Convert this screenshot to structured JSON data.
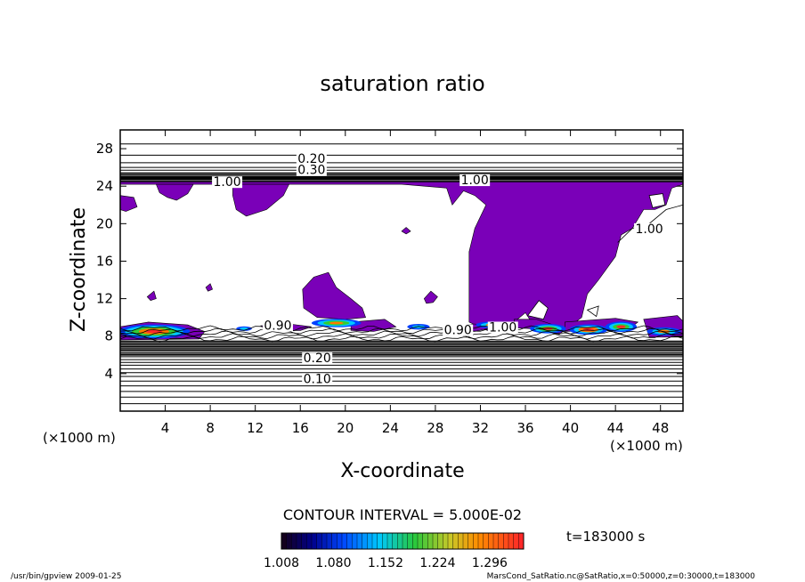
{
  "chart_data": {
    "type": "heatmap",
    "title": "saturation ratio",
    "xlabel": "X-coordinate",
    "ylabel": "Z-coordinate",
    "x_unit": "(×1000 m)",
    "y_unit": "(×1000 m)",
    "xlim": [
      0,
      50
    ],
    "ylim": [
      0,
      30
    ],
    "x_ticks": [
      "4",
      "8",
      "12",
      "16",
      "20",
      "24",
      "28",
      "32",
      "36",
      "40",
      "44",
      "48"
    ],
    "y_ticks": [
      "4",
      "8",
      "12",
      "16",
      "20",
      "24",
      "28"
    ],
    "contour_interval_text": "CONTOUR INTERVAL = 5.000E-02",
    "colorbar_ticks": [
      "1.008",
      "1.080",
      "1.152",
      "1.224",
      "1.296"
    ],
    "colorbar_range": [
      1.008,
      1.296
    ],
    "contour_labels": [
      {
        "text": "0.20",
        "x": 17.0,
        "y": 26.5
      },
      {
        "text": "0.30",
        "x": 17.0,
        "y": 25.3
      },
      {
        "text": "1.00",
        "x": 9.5,
        "y": 24.0
      },
      {
        "text": "1.00",
        "x": 31.5,
        "y": 24.2
      },
      {
        "text": "1.00",
        "x": 47.0,
        "y": 19.0
      },
      {
        "text": "0.90",
        "x": 14.0,
        "y": 8.7
      },
      {
        "text": "0.90",
        "x": 30.0,
        "y": 8.2
      },
      {
        "text": "1.00",
        "x": 34.0,
        "y": 8.5
      },
      {
        "text": "0.20",
        "x": 17.5,
        "y": 5.2
      },
      {
        "text": "0.10",
        "x": 17.5,
        "y": 3.0
      }
    ],
    "time_label": "t=183000 s",
    "footer_left": "/usr/bin/gpview   2009-01-25",
    "footer_right": "MarsCond_SatRatio.nc@SatRatio,x=0:50000,z=0:30000,t=183000",
    "colors": {
      "supersat": "#7a00b8",
      "low": "#00008b",
      "high": "#ff2a2a"
    }
  }
}
